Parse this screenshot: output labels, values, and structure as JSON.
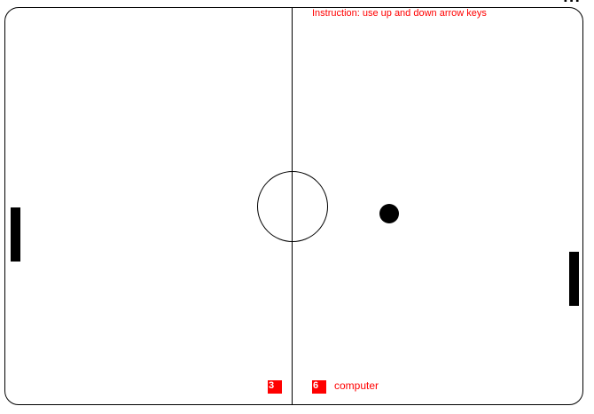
{
  "game": {
    "instruction": "Instruction: use up and down arrow keys",
    "player_score": "3",
    "computer_score": "6",
    "computer_label": "computer",
    "corner_mark": "...",
    "colors": {
      "text_accent": "#ff0000",
      "score_box": "#ff0000",
      "paddle": "#000000",
      "ball": "#000000",
      "court_line": "#000000"
    }
  }
}
